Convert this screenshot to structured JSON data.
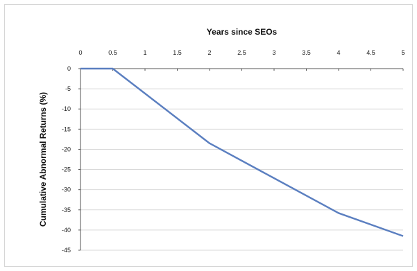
{
  "chart_data": {
    "type": "line",
    "xlabel": "Years since SEOs",
    "ylabel": "Cumulative Abnormal Returns (%)",
    "xlim": [
      0,
      5
    ],
    "ylim": [
      -45,
      0
    ],
    "x_ticks": [
      "0",
      "0.5",
      "1",
      "1.5",
      "2",
      "2.5",
      "3",
      "3.5",
      "4",
      "4.5",
      "5"
    ],
    "y_ticks": [
      "0",
      "-5",
      "-10",
      "-15",
      "-20",
      "-25",
      "-30",
      "-35",
      "-40",
      "-45"
    ],
    "x_tick_values": [
      0,
      0.5,
      1,
      1.5,
      2,
      2.5,
      3,
      3.5,
      4,
      4.5,
      5
    ],
    "y_tick_values": [
      0,
      -5,
      -10,
      -15,
      -20,
      -25,
      -30,
      -35,
      -40,
      -45
    ],
    "x_axis_position": "top",
    "grid": "horizontal",
    "legend": "none",
    "series": [
      {
        "x": [
          0,
          0.5,
          2,
          4,
          5
        ],
        "y": [
          0,
          0,
          -18.5,
          -35.8,
          -41.5
        ],
        "color": "#5b7fc0"
      }
    ]
  }
}
